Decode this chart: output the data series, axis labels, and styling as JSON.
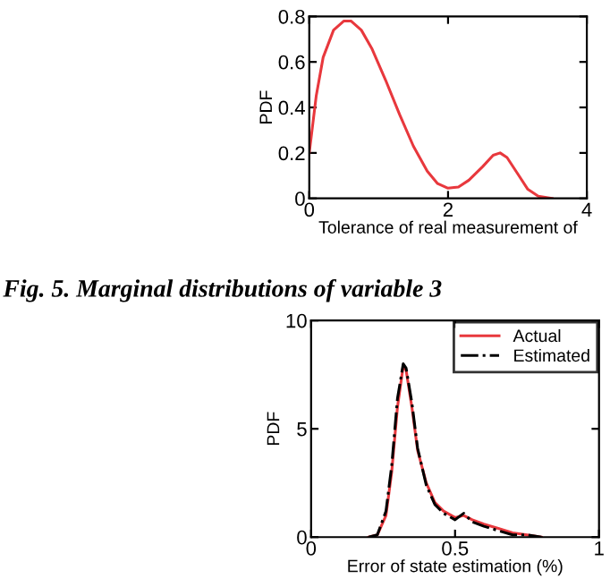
{
  "chart_data": [
    {
      "type": "line",
      "xlabel": "Tolerance of real measurement of",
      "ylabel": "PDF",
      "annotations": [
        "Fig. 5. Marginal distributions of variable 3"
      ],
      "xlim": [
        0,
        4
      ],
      "ylim": [
        0,
        0.8
      ],
      "xticks": [
        0,
        2,
        4
      ],
      "yticks": [
        0,
        0.2,
        0.4,
        0.6,
        0.8
      ],
      "grid": false,
      "legend": false,
      "line_style": "solid",
      "series": [
        {
          "color": "#e8383d",
          "x": [
            0,
            0.1,
            0.2,
            0.35,
            0.5,
            0.6,
            0.75,
            0.9,
            1.1,
            1.3,
            1.5,
            1.7,
            1.85,
            2.0,
            2.15,
            2.3,
            2.5,
            2.65,
            2.75,
            2.85,
            3.0,
            3.15,
            3.3,
            3.5
          ],
          "values": [
            0.2,
            0.45,
            0.62,
            0.74,
            0.78,
            0.78,
            0.74,
            0.66,
            0.52,
            0.37,
            0.23,
            0.12,
            0.065,
            0.045,
            0.05,
            0.08,
            0.14,
            0.19,
            0.2,
            0.18,
            0.11,
            0.04,
            0.01,
            0.0
          ]
        }
      ]
    },
    {
      "type": "line",
      "xlabel": "Error of state estimation (%)",
      "ylabel": "PDF",
      "xlim": [
        0,
        1
      ],
      "ylim": [
        0,
        10
      ],
      "xticks": [
        0,
        0.5,
        1
      ],
      "yticks": [
        0,
        5,
        10
      ],
      "grid": false,
      "legend": "top right",
      "series": [
        {
          "name": "Actual",
          "color": "#e8383d",
          "line_style": "solid",
          "x": [
            0.2,
            0.23,
            0.26,
            0.28,
            0.3,
            0.32,
            0.33,
            0.35,
            0.37,
            0.4,
            0.43,
            0.46,
            0.5,
            0.53,
            0.56,
            0.6,
            0.65,
            0.7,
            0.75,
            0.8
          ],
          "values": [
            0,
            0.1,
            1,
            3,
            6,
            7.9,
            7.7,
            6,
            4,
            2.5,
            1.6,
            1.2,
            0.9,
            1.0,
            0.8,
            0.6,
            0.4,
            0.2,
            0.1,
            0
          ]
        },
        {
          "name": "Estimated",
          "color": "#000000",
          "line_style": "dashdot",
          "x": [
            0.2,
            0.23,
            0.26,
            0.28,
            0.3,
            0.32,
            0.33,
            0.35,
            0.37,
            0.4,
            0.43,
            0.46,
            0.5,
            0.53,
            0.56,
            0.6,
            0.65,
            0.7,
            0.75,
            0.8
          ],
          "values": [
            0,
            0.1,
            1.2,
            3.3,
            6.4,
            8.0,
            7.8,
            6.2,
            4.1,
            2.4,
            1.5,
            1.1,
            0.8,
            1.1,
            0.7,
            0.5,
            0.3,
            0.1,
            0.1,
            0
          ]
        }
      ]
    }
  ]
}
